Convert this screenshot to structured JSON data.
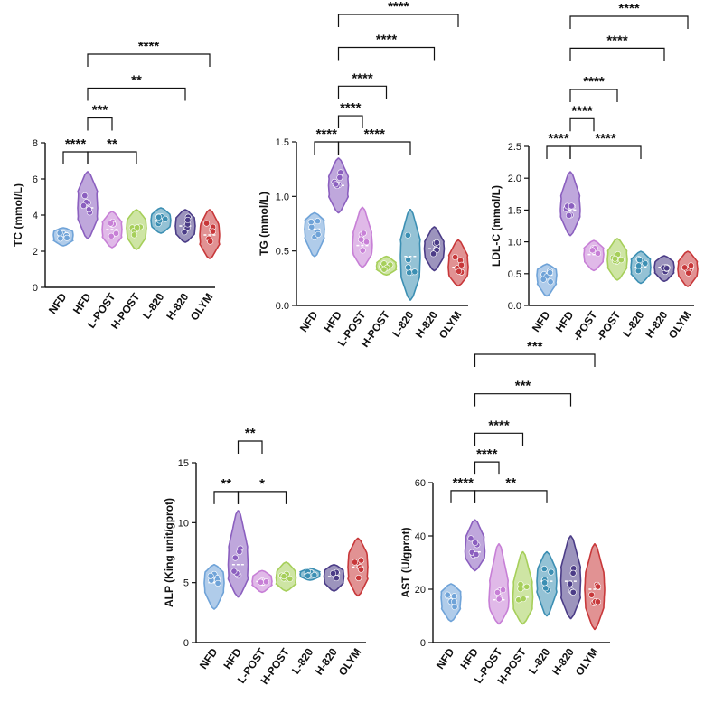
{
  "colors": {
    "NFD": "#6fa3d8",
    "HFD": "#8b5fbf",
    "L-POST": "#c77fd6",
    "H-POST": "#a6cf5a",
    "L-820": "#3c8fb3",
    "H-820": "#4b3c87",
    "OLYM": "#c8383a"
  },
  "chart_data": [
    {
      "type": "violin",
      "ylabel": "TC (mmol/L)",
      "ylim": [
        0,
        8
      ],
      "yticks": [
        0,
        2,
        4,
        6,
        8
      ],
      "categories": [
        "NFD",
        "HFD",
        "L-POST",
        "H-POST",
        "L-820",
        "H-820",
        "OLYM"
      ],
      "distributions": [
        {
          "min": 2.3,
          "q1": 2.6,
          "median": 2.9,
          "q3": 3.1,
          "max": 3.3,
          "mean": 2.9
        },
        {
          "min": 2.7,
          "q1": 3.8,
          "median": 4.4,
          "q3": 5.3,
          "max": 6.4,
          "mean": 4.5
        },
        {
          "min": 2.2,
          "q1": 2.8,
          "median": 3.2,
          "q3": 3.6,
          "max": 4.2,
          "mean": 3.2
        },
        {
          "min": 2.1,
          "q1": 2.8,
          "median": 3.3,
          "q3": 3.7,
          "max": 4.3,
          "mean": 3.3
        },
        {
          "min": 3.0,
          "q1": 3.4,
          "median": 3.7,
          "q3": 4.0,
          "max": 4.4,
          "mean": 3.7
        },
        {
          "min": 2.5,
          "q1": 3.0,
          "median": 3.4,
          "q3": 3.8,
          "max": 4.3,
          "mean": 3.4
        },
        {
          "min": 1.6,
          "q1": 2.4,
          "median": 2.9,
          "q3": 3.4,
          "max": 4.3,
          "mean": 2.9
        }
      ],
      "comparisons": [
        {
          "from": 0,
          "to": 1,
          "label": "****",
          "y": 7.5
        },
        {
          "from": 1,
          "to": 2,
          "label": "***",
          "y": 9.2
        },
        {
          "from": 1,
          "to": 3,
          "label": "**",
          "y": 7.5
        },
        {
          "from": 1,
          "to": 5,
          "label": "**",
          "y": 10.7
        },
        {
          "from": 1,
          "to": 6,
          "label": "****",
          "y": 12.4
        }
      ]
    },
    {
      "type": "violin",
      "ylabel": "TG (mmol/L)",
      "ylim": [
        0,
        1.5
      ],
      "yticks": [
        0.0,
        0.5,
        1.0,
        1.5
      ],
      "ytick_labels": [
        "0.0",
        "0.5",
        "1.0",
        "1.5"
      ],
      "categories": [
        "NFD",
        "HFD",
        "L-POST",
        "H-POST",
        "L-820",
        "H-820",
        "OLYM"
      ],
      "category_labels": [
        "NFD",
        "HFD",
        "L-POST",
        "H-POST",
        "L-820",
        "H-820",
        "OLYM"
      ],
      "distributions": [
        {
          "min": 0.45,
          "q1": 0.62,
          "median": 0.7,
          "q3": 0.78,
          "max": 0.85,
          "mean": 0.7
        },
        {
          "min": 0.85,
          "q1": 1.0,
          "median": 1.1,
          "q3": 1.18,
          "max": 1.35,
          "mean": 1.1
        },
        {
          "min": 0.35,
          "q1": 0.48,
          "median": 0.55,
          "q3": 0.65,
          "max": 0.9,
          "mean": 0.57
        },
        {
          "min": 0.28,
          "q1": 0.33,
          "median": 0.36,
          "q3": 0.39,
          "max": 0.45,
          "mean": 0.36
        },
        {
          "min": 0.05,
          "q1": 0.28,
          "median": 0.45,
          "q3": 0.6,
          "max": 0.88,
          "mean": 0.44
        },
        {
          "min": 0.32,
          "q1": 0.45,
          "median": 0.52,
          "q3": 0.58,
          "max": 0.72,
          "mean": 0.51
        },
        {
          "min": 0.18,
          "q1": 0.28,
          "median": 0.35,
          "q3": 0.45,
          "max": 0.6,
          "mean": 0.37
        }
      ],
      "comparisons": [
        {
          "from": 0,
          "to": 1,
          "label": "****",
          "y": 1.5
        },
        {
          "from": 1,
          "to": 2,
          "label": "****",
          "y": 1.73
        },
        {
          "from": 1,
          "to": 4,
          "label": "****",
          "y": 1.5
        },
        {
          "from": 1,
          "to": 3,
          "label": "****",
          "y": 1.99
        },
        {
          "from": 1,
          "to": 5,
          "label": "****",
          "y": 2.33
        },
        {
          "from": 1,
          "to": 6,
          "label": "****",
          "y": 2.62
        }
      ]
    },
    {
      "type": "violin",
      "ylabel": "LDL-C (mmol/L)",
      "ylim": [
        0,
        2.5
      ],
      "yticks": [
        0.0,
        0.5,
        1.0,
        1.5,
        2.0,
        2.5
      ],
      "ytick_labels": [
        "0.0",
        "0.5",
        "1.0",
        "1.5",
        "2.0",
        "2.5"
      ],
      "categories": [
        "NFD",
        "HFD",
        "L-POST",
        "H-POST",
        "L-820",
        "H-820",
        "OLYM"
      ],
      "category_labels": [
        "NFD",
        "HFD",
        "-POST",
        "-POST",
        "L-820",
        "H-820",
        "OLYM"
      ],
      "distributions": [
        {
          "min": 0.15,
          "q1": 0.35,
          "median": 0.48,
          "q3": 0.56,
          "max": 0.65,
          "mean": 0.45
        },
        {
          "min": 1.1,
          "q1": 1.4,
          "median": 1.5,
          "q3": 1.7,
          "max": 2.1,
          "mean": 1.55
        },
        {
          "min": 0.55,
          "q1": 0.7,
          "median": 0.8,
          "q3": 0.9,
          "max": 1.02,
          "mean": 0.8
        },
        {
          "min": 0.4,
          "q1": 0.6,
          "median": 0.72,
          "q3": 0.85,
          "max": 1.05,
          "mean": 0.72
        },
        {
          "min": 0.35,
          "q1": 0.5,
          "median": 0.6,
          "q3": 0.72,
          "max": 0.85,
          "mean": 0.6
        },
        {
          "min": 0.38,
          "q1": 0.52,
          "median": 0.6,
          "q3": 0.68,
          "max": 0.78,
          "mean": 0.6
        },
        {
          "min": 0.3,
          "q1": 0.48,
          "median": 0.57,
          "q3": 0.68,
          "max": 0.85,
          "mean": 0.58
        }
      ],
      "comparisons": [
        {
          "from": 0,
          "to": 1,
          "label": "****",
          "y": 2.5
        },
        {
          "from": 1,
          "to": 2,
          "label": "****",
          "y": 2.89
        },
        {
          "from": 1,
          "to": 4,
          "label": "****",
          "y": 2.5
        },
        {
          "from": 1,
          "to": 3,
          "label": "****",
          "y": 3.3
        },
        {
          "from": 1,
          "to": 5,
          "label": "****",
          "y": 3.88
        },
        {
          "from": 1,
          "to": 6,
          "label": "****",
          "y": 4.33
        }
      ]
    },
    {
      "type": "violin",
      "ylabel": "ALP (King unit/gprot)",
      "ylim": [
        0,
        15
      ],
      "yticks": [
        0,
        5,
        10,
        15
      ],
      "categories": [
        "NFD",
        "HFD",
        "L-POST",
        "H-POST",
        "L-820",
        "H-820",
        "OLYM"
      ],
      "distributions": [
        {
          "min": 2.8,
          "q1": 4.3,
          "median": 5.0,
          "q3": 5.8,
          "max": 6.5,
          "mean": 5.0
        },
        {
          "min": 3.8,
          "q1": 5.3,
          "median": 6.5,
          "q3": 7.8,
          "max": 11.0,
          "mean": 6.8
        },
        {
          "min": 4.2,
          "q1": 4.8,
          "median": 5.1,
          "q3": 5.5,
          "max": 6.0,
          "mean": 5.1
        },
        {
          "min": 4.3,
          "q1": 4.9,
          "median": 5.4,
          "q3": 5.9,
          "max": 6.7,
          "mean": 5.4
        },
        {
          "min": 5.2,
          "q1": 5.5,
          "median": 5.7,
          "q3": 5.9,
          "max": 6.2,
          "mean": 5.7
        },
        {
          "min": 4.3,
          "q1": 5.0,
          "median": 5.5,
          "q3": 6.0,
          "max": 6.5,
          "mean": 5.5
        },
        {
          "min": 3.9,
          "q1": 5.3,
          "median": 6.3,
          "q3": 7.3,
          "max": 8.7,
          "mean": 6.3
        }
      ],
      "comparisons": [
        {
          "from": 0,
          "to": 1,
          "label": "**",
          "y": 12.6
        },
        {
          "from": 1,
          "to": 2,
          "label": "**",
          "y": 14.8
        },
        {
          "from": 1,
          "to": 3,
          "label": "*",
          "y": 12.6
        }
      ]
    },
    {
      "type": "violin",
      "ylabel": "AST (U/gprot)",
      "ylim": [
        0,
        60
      ],
      "yticks": [
        0,
        20,
        40,
        60
      ],
      "categories": [
        "NFD",
        "HFD",
        "L-POST",
        "H-POST",
        "L-820",
        "H-820",
        "OLYM"
      ],
      "distributions": [
        {
          "min": 8,
          "q1": 13,
          "median": 17,
          "q3": 19,
          "max": 22,
          "mean": 16
        },
        {
          "min": 27,
          "q1": 32,
          "median": 34,
          "q3": 39,
          "max": 46,
          "mean": 35
        },
        {
          "min": 7,
          "q1": 13,
          "median": 16,
          "q3": 22,
          "max": 37,
          "mean": 18
        },
        {
          "min": 7,
          "q1": 13,
          "median": 17,
          "q3": 22,
          "max": 34,
          "mean": 18
        },
        {
          "min": 10,
          "q1": 19,
          "median": 23,
          "q3": 27,
          "max": 34,
          "mean": 23
        },
        {
          "min": 9,
          "q1": 17,
          "median": 23,
          "q3": 28,
          "max": 40,
          "mean": 23
        },
        {
          "min": 5,
          "q1": 14,
          "median": 20,
          "q3": 25,
          "max": 37,
          "mean": 20
        }
      ],
      "comparisons": [
        {
          "from": 0,
          "to": 1,
          "label": "****",
          "y": 57
        },
        {
          "from": 1,
          "to": 2,
          "label": "****",
          "y": 65
        },
        {
          "from": 1,
          "to": 4,
          "label": "**",
          "y": 57
        },
        {
          "from": 1,
          "to": 3,
          "label": "****",
          "y": 73
        },
        {
          "from": 1,
          "to": 5,
          "label": "***",
          "y": 84
        },
        {
          "from": 1,
          "to": 6,
          "label": "***",
          "y": 95
        }
      ]
    }
  ]
}
